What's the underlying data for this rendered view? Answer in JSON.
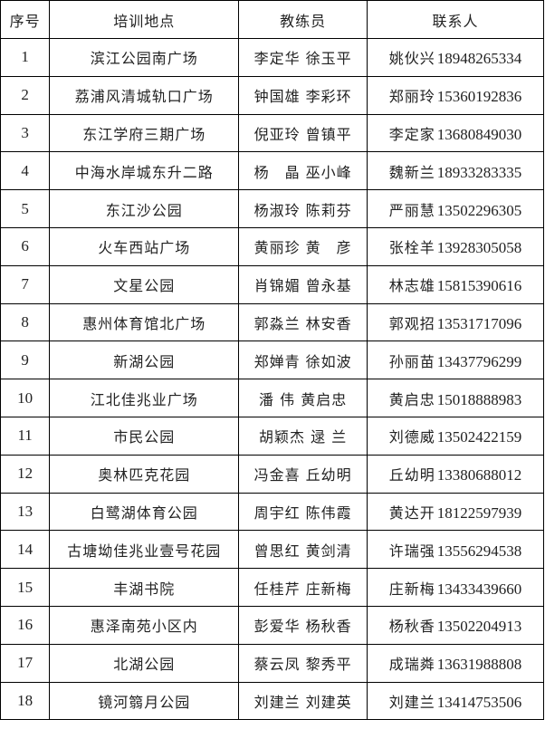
{
  "table": {
    "headers": [
      "序号",
      "培训地点",
      "教练员",
      "联系人"
    ],
    "rows": [
      {
        "no": "1",
        "location": "滨江公园南广场",
        "coaches": "李定华 徐玉平",
        "contact": "姚伙兴",
        "phone": "18948265334"
      },
      {
        "no": "2",
        "location": "荔浦风清城轨口广场",
        "coaches": "钟国雄 李彩环",
        "contact": "郑丽玲",
        "phone": "15360192836"
      },
      {
        "no": "3",
        "location": "东江学府三期广场",
        "coaches": "倪亚玲 曾镇平",
        "contact": "李定家",
        "phone": "13680849030"
      },
      {
        "no": "4",
        "location": "中海水岸城东升二路",
        "coaches": "杨　晶 巫小峰",
        "contact": "魏新兰",
        "phone": "18933283335"
      },
      {
        "no": "5",
        "location": "东江沙公园",
        "coaches": "杨淑玲 陈莉芬",
        "contact": "严丽慧",
        "phone": "13502296305"
      },
      {
        "no": "6",
        "location": "火车西站广场",
        "coaches": "黄丽珍 黄　彦",
        "contact": "张栓羊",
        "phone": "13928305058"
      },
      {
        "no": "7",
        "location": "文星公园",
        "coaches": "肖锦媚 曾永基",
        "contact": "林志雄",
        "phone": "15815390616"
      },
      {
        "no": "8",
        "location": "惠州体育馆北广场",
        "coaches": "郭淼兰 林安香",
        "contact": "郭观招",
        "phone": "13531717096"
      },
      {
        "no": "9",
        "location": "新湖公园",
        "coaches": "郑婵青 徐如波",
        "contact": "孙丽苗",
        "phone": "13437796299"
      },
      {
        "no": "10",
        "location": "江北佳兆业广场",
        "coaches": "潘 伟  黄启忠",
        "contact": "黄启忠",
        "phone": "15018888983"
      },
      {
        "no": "11",
        "location": "市民公园",
        "coaches": "胡颖杰 逯 兰",
        "contact": "刘德威",
        "phone": "13502422159"
      },
      {
        "no": "12",
        "location": "奥林匹克花园",
        "coaches": "冯金喜 丘幼明",
        "contact": "丘幼明",
        "phone": "13380688012"
      },
      {
        "no": "13",
        "location": "白鹭湖体育公园",
        "coaches": "周宇红 陈伟霞",
        "contact": "黄达开",
        "phone": "18122597939"
      },
      {
        "no": "14",
        "location": "古塘坳佳兆业壹号花园",
        "coaches": "曾思红 黄剑清",
        "contact": "许瑞强",
        "phone": "13556294538"
      },
      {
        "no": "15",
        "location": "丰湖书院",
        "coaches": "任桂芹 庄新梅",
        "contact": "庄新梅",
        "phone": "13433439660"
      },
      {
        "no": "16",
        "location": "惠泽南苑小区内",
        "coaches": "彭爱华 杨秋香",
        "contact": "杨秋香",
        "phone": "13502204913"
      },
      {
        "no": "17",
        "location": "北湖公园",
        "coaches": "蔡云凤 黎秀平",
        "contact": "成瑞粦",
        "phone": "13631988808"
      },
      {
        "no": "18",
        "location": "镜河篛月公园",
        "coaches": "刘建兰  刘建英",
        "contact": "刘建兰",
        "phone": "13414753506"
      }
    ]
  }
}
